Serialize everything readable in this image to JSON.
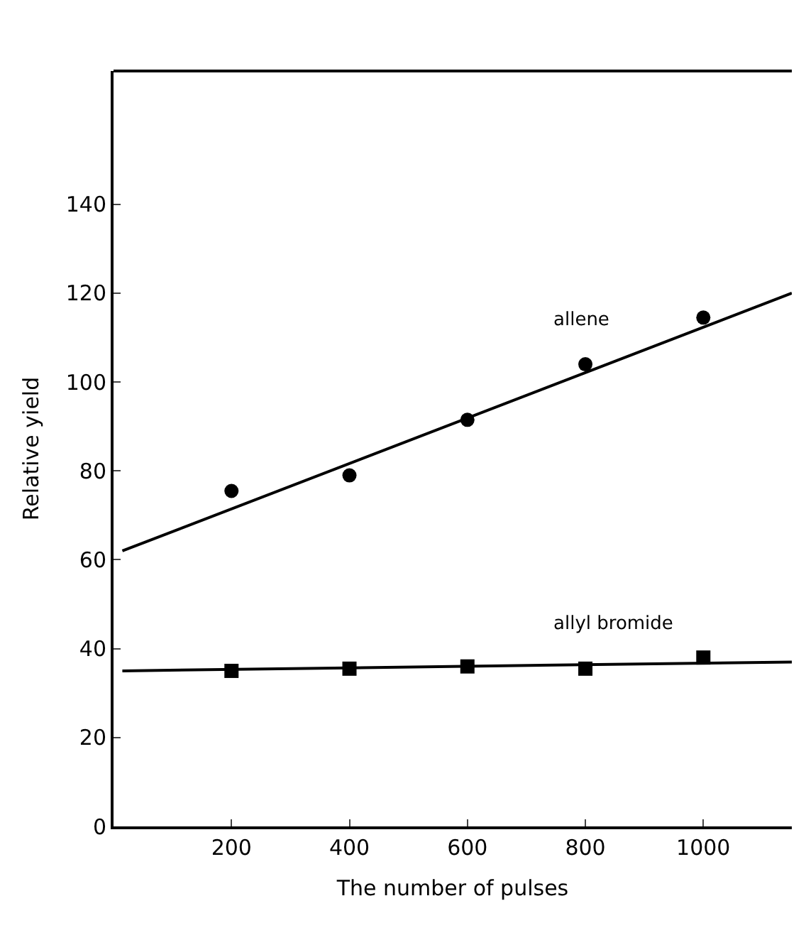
{
  "chart_data": {
    "type": "scatter",
    "xlabel": "The number of pulses",
    "ylabel": "Relative yield",
    "xlim": [
      0,
      1150
    ],
    "ylim": [
      0,
      170
    ],
    "xticks": [
      200,
      400,
      600,
      800,
      1000
    ],
    "yticks": [
      0,
      20,
      40,
      60,
      80,
      100,
      120,
      140
    ],
    "legend": false,
    "series": [
      {
        "name": "allene",
        "marker": "circle",
        "color": "#000000",
        "x": [
          200,
          400,
          600,
          800,
          1000
        ],
        "values": [
          75.5,
          79,
          91.5,
          104,
          114.5
        ]
      },
      {
        "type": "line",
        "marker": "none",
        "color": "#000000",
        "x": [
          15,
          1150
        ],
        "values": [
          62,
          120
        ]
      },
      {
        "name": "allyl bromide",
        "marker": "square",
        "color": "#000000",
        "x": [
          200,
          400,
          600,
          800,
          1000
        ],
        "values": [
          35,
          35.5,
          36,
          35.5,
          38
        ]
      },
      {
        "type": "line",
        "marker": "none",
        "color": "#000000",
        "x": [
          15,
          1150
        ],
        "values": [
          35,
          37
        ]
      }
    ]
  }
}
